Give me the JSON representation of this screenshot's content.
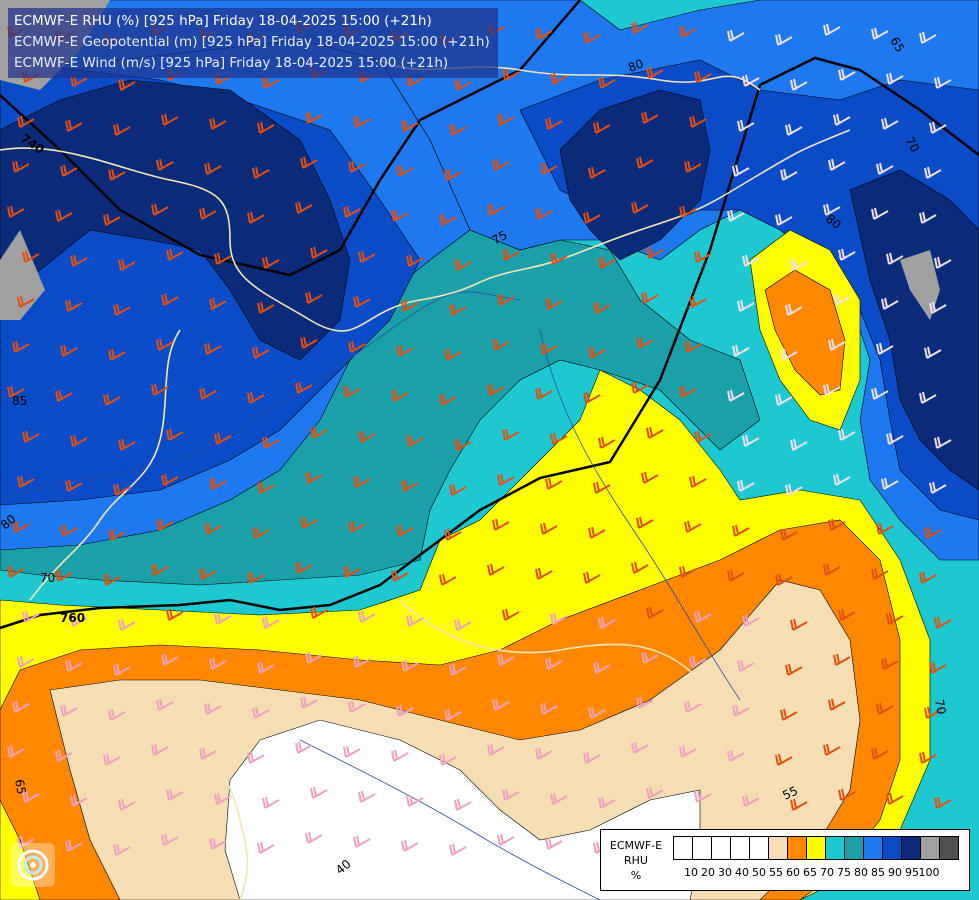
{
  "header": {
    "line1": "ECMWF-E RHU (%) [925 hPa] Friday 18-04-2025 15:00 (+21h)",
    "line2": "ECMWF-E Geopotential (m) [925 hPa] Friday 18-04-2025 15:00 (+21h)",
    "line3": "ECMWF-E Wind (m/s) [925 hPa] Friday 18-04-2025 15:00 (+21h)"
  },
  "legend": {
    "title_line1": "ECMWF-E",
    "title_line2": "RHU",
    "title_line3": "%",
    "colors": [
      "#ffffff",
      "#ffffff",
      "#ffffff",
      "#ffffff",
      "#ffffff",
      "#f5deb3",
      "#ff8800",
      "#ffff00",
      "#1ec8d0",
      "#19a0a8",
      "#1e78f0",
      "#0a4cc8",
      "#0a2a7a",
      "#a0a0a0",
      "#505050"
    ],
    "ticks": [
      "10",
      "20",
      "30",
      "40",
      "50",
      "55",
      "60",
      "65",
      "70",
      "75",
      "80",
      "85",
      "90",
      "95",
      "100"
    ]
  },
  "map": {
    "geopotential_labels": [
      "740",
      "760"
    ],
    "rhu_labels": [
      "65",
      "70",
      "80",
      "70",
      "70",
      "80",
      "85",
      "80",
      "55",
      "40",
      "65",
      "75"
    ]
  }
}
